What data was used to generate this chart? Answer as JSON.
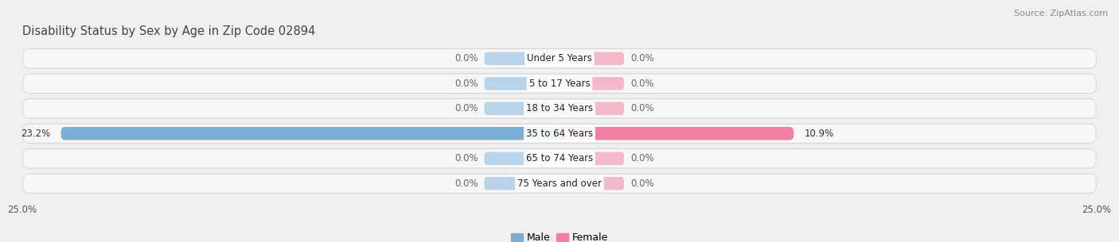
{
  "title": "Disability Status by Sex by Age in Zip Code 02894",
  "source": "Source: ZipAtlas.com",
  "categories": [
    "Under 5 Years",
    "5 to 17 Years",
    "18 to 34 Years",
    "35 to 64 Years",
    "65 to 74 Years",
    "75 Years and over"
  ],
  "male_values": [
    0.0,
    0.0,
    0.0,
    23.2,
    0.0,
    0.0
  ],
  "female_values": [
    0.0,
    0.0,
    0.0,
    10.9,
    0.0,
    0.0
  ],
  "male_color": "#7aaed6",
  "female_color": "#f07fa0",
  "male_color_light": "#b8d4ea",
  "female_color_light": "#f5b8c8",
  "row_bg_color": "#e8e8e8",
  "row_inner_color": "#f5f5f5",
  "xlim": 25.0,
  "bar_height": 0.52,
  "label_fontsize": 8.5,
  "title_fontsize": 10.5,
  "source_fontsize": 8,
  "tick_fontsize": 8.5,
  "value_fontsize": 8.5,
  "fig_width": 14.06,
  "fig_height": 3.05,
  "bg_color": "#f0f0f0"
}
